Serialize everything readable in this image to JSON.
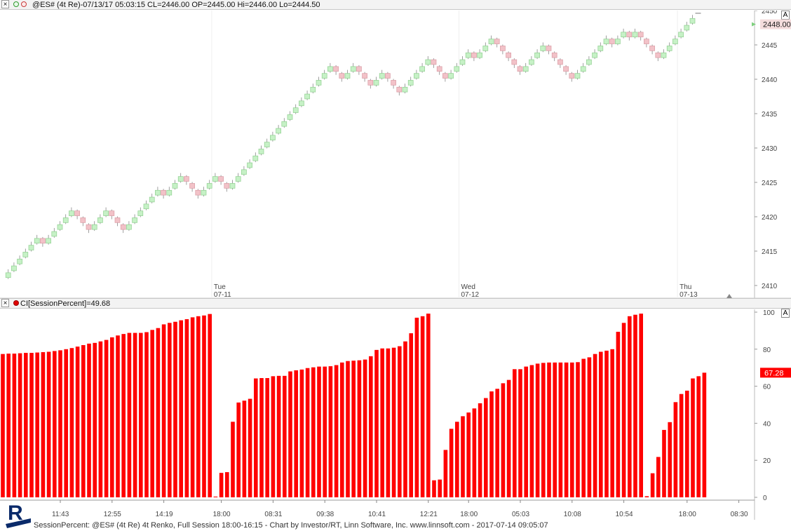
{
  "top_panel": {
    "title": "@ES# (4t Re)-07/13/17 05:03:15 CL=2446.00 OP=2445.00 Hi=2446.00 Lo=2444.50",
    "a_button": "A",
    "last_price_label": "2448.00"
  },
  "bottom_panel": {
    "title": "CI[SessionPercent]=49.68",
    "a_button": "A",
    "last_value_label": "67.28"
  },
  "footer": {
    "text": "SessionPercent: @ES# (4t Re) 4t Renko, Full Session 18:00-16:15 - Chart by Investor/RT, Linn Software, Inc. www.linnsoft.com - 2017-07-14 09:05:07"
  },
  "colors": {
    "up": "#c6f1c6",
    "down": "#f2c2c8",
    "bar": "#ff0000",
    "price_badge": "#f3dcdc",
    "value_badge": "#ff0000"
  },
  "chart_data": [
    {
      "type": "candlestick",
      "subtype": "renko",
      "ylim": [
        2408,
        2450
      ],
      "yticks": [
        2410,
        2415,
        2420,
        2425,
        2430,
        2435,
        2440,
        2445,
        2450
      ],
      "day_labels": [
        {
          "day": "Tue",
          "date": "07-11",
          "at_brick": 37
        },
        {
          "day": "Wed",
          "date": "07-12",
          "at_brick": 80
        },
        {
          "day": "Thu",
          "date": "07-13",
          "at_brick": 118
        }
      ],
      "bricks": [
        2411,
        2412,
        2413,
        2414,
        2415,
        2416,
        2417,
        2416,
        2417,
        2418,
        2419,
        2420,
        2421,
        2420,
        2419,
        2418,
        2419,
        2420,
        2421,
        2420,
        2419,
        2418,
        2419,
        2420,
        2421,
        2422,
        2423,
        2424,
        2423,
        2424,
        2425,
        2426,
        2425,
        2424,
        2423,
        2424,
        2425,
        2426,
        2425,
        2424,
        2425,
        2426,
        2427,
        2428,
        2429,
        2430,
        2431,
        2432,
        2433,
        2434,
        2435,
        2436,
        2437,
        2438,
        2439,
        2440,
        2441,
        2442,
        2441,
        2440,
        2441,
        2442,
        2441,
        2440,
        2439,
        2440,
        2441,
        2440,
        2439,
        2438,
        2439,
        2440,
        2441,
        2442,
        2443,
        2442,
        2441,
        2440,
        2441,
        2442,
        2443,
        2444,
        2443,
        2444,
        2445,
        2446,
        2445,
        2444,
        2443,
        2442,
        2441,
        2442,
        2443,
        2444,
        2445,
        2444,
        2443,
        2442,
        2441,
        2440,
        2441,
        2442,
        2443,
        2444,
        2445,
        2446,
        2445,
        2446,
        2447,
        2446,
        2447,
        2446,
        2445,
        2444,
        2443,
        2444,
        2445,
        2446,
        2447,
        2448,
        2449
      ]
    },
    {
      "type": "bar",
      "title": "CI[SessionPercent]=49.68",
      "ylim": [
        0,
        100
      ],
      "yticks": [
        0,
        20,
        40,
        60,
        80,
        100
      ],
      "x_tick_labels": [
        {
          "label": "11:43",
          "at_bar": 10
        },
        {
          "label": "12:55",
          "at_bar": 19
        },
        {
          "label": "14:19",
          "at_bar": 28
        },
        {
          "label": "18:00",
          "at_bar": 38
        },
        {
          "label": "08:31",
          "at_bar": 47
        },
        {
          "label": "09:38",
          "at_bar": 56
        },
        {
          "label": "10:41",
          "at_bar": 65
        },
        {
          "label": "12:21",
          "at_bar": 74
        },
        {
          "label": "18:00",
          "at_bar": 81
        },
        {
          "label": "05:03",
          "at_bar": 90
        },
        {
          "label": "10:08",
          "at_bar": 99
        },
        {
          "label": "10:54",
          "at_bar": 108
        },
        {
          "label": "18:00",
          "at_bar": 119
        },
        {
          "label": "08:30",
          "at_bar": 128
        }
      ],
      "values": [
        77.4,
        77.6,
        77.6,
        77.8,
        78.0,
        78.0,
        78.2,
        78.4,
        78.6,
        79.0,
        79.4,
        80.0,
        80.6,
        81.4,
        82.2,
        83.0,
        83.4,
        84.2,
        85.0,
        86.4,
        87.4,
        88.2,
        88.8,
        88.8,
        88.8,
        89.2,
        90.4,
        91.4,
        93.4,
        94.2,
        94.8,
        95.6,
        96.2,
        97.2,
        97.8,
        98.2,
        99.0,
        0.4,
        13.2,
        13.6,
        40.8,
        51.2,
        52.2,
        53.2,
        64.2,
        64.4,
        64.4,
        65.4,
        65.6,
        65.6,
        68.0,
        68.6,
        69.0,
        69.8,
        70.2,
        70.6,
        70.6,
        70.8,
        71.4,
        72.8,
        73.6,
        73.8,
        74.0,
        74.4,
        76.2,
        79.6,
        80.4,
        80.4,
        80.8,
        81.6,
        84.2,
        88.6,
        97.0,
        97.8,
        99.2,
        9.2,
        9.6,
        25.6,
        37.0,
        40.8,
        43.8,
        45.8,
        48.0,
        50.8,
        53.6,
        57.2,
        58.6,
        61.6,
        63.4,
        69.2,
        69.2,
        70.6,
        71.4,
        72.2,
        72.6,
        72.8,
        72.8,
        72.8,
        72.8,
        72.8,
        73.0,
        74.8,
        75.6,
        77.4,
        78.6,
        79.2,
        80.0,
        89.4,
        94.2,
        97.8,
        98.6,
        99.2,
        0.6,
        13.0,
        21.8,
        36.4,
        40.6,
        51.4,
        55.8,
        57.6,
        64.2,
        65.4,
        67.3
      ]
    }
  ]
}
